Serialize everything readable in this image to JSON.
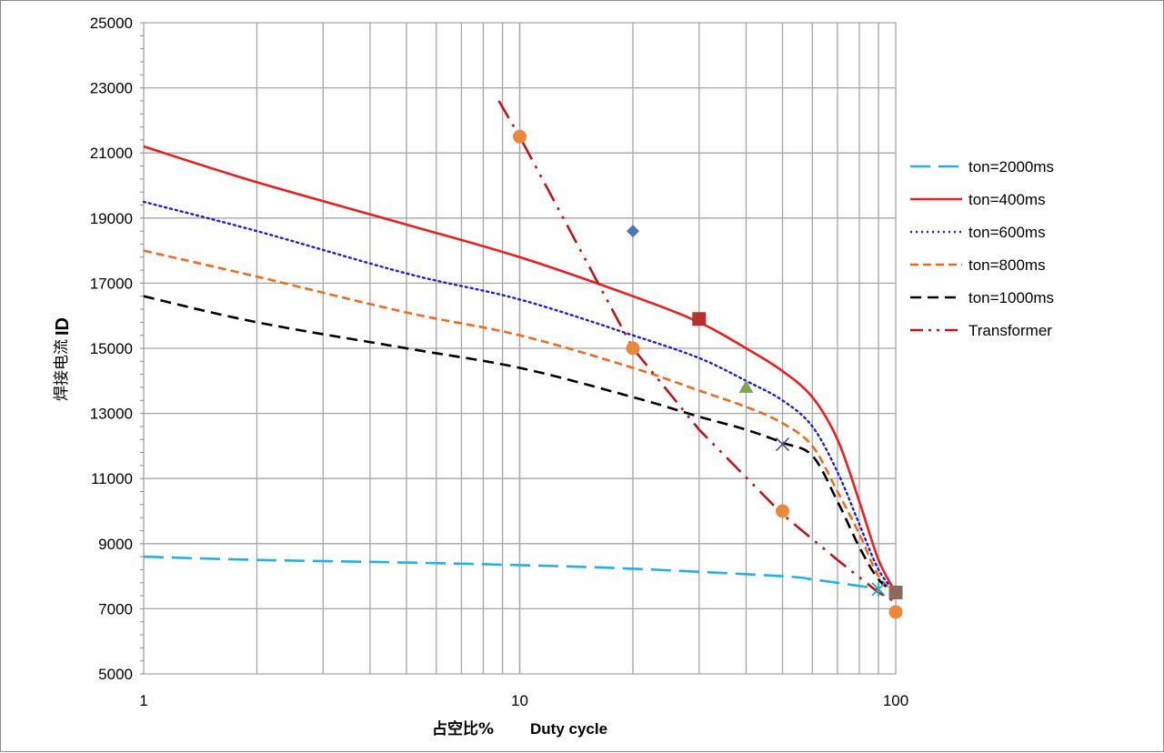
{
  "chart_data": {
    "type": "line",
    "xscale": "log",
    "xlim": [
      1,
      100
    ],
    "ylim": [
      5000,
      25000
    ],
    "grid": true,
    "legend_position": "right",
    "xlabel_cn": "占空比%",
    "xlabel_en": "Duty cycle",
    "ylabel_main": "焊接电流",
    "ylabel_sub": "ID",
    "x_ticks": [
      1,
      10,
      100
    ],
    "y_ticks": [
      5000,
      7000,
      9000,
      11000,
      13000,
      15000,
      17000,
      19000,
      21000,
      23000,
      25000
    ],
    "series": [
      {
        "name": "ton=2000ms",
        "color": "#1fb2e6",
        "dash": "long-dash",
        "x": [
          1,
          2,
          5,
          10,
          20,
          50,
          60,
          70,
          80,
          90
        ],
        "y": [
          8600,
          8500,
          8420,
          8340,
          8230,
          8000,
          7900,
          7800,
          7700,
          7620
        ]
      },
      {
        "name": "ton=400ms",
        "color": "#ee1c1c",
        "dash": "solid",
        "x": [
          1,
          2,
          5,
          10,
          20,
          30,
          40,
          50,
          60,
          70,
          80,
          90,
          100
        ],
        "y": [
          21200,
          20100,
          18800,
          17800,
          16600,
          15800,
          15000,
          14300,
          13500,
          12200,
          10300,
          8500,
          7500
        ]
      },
      {
        "name": "ton=600ms",
        "color": "#1f1fdc",
        "dash": "dotted",
        "x": [
          1,
          2,
          5,
          10,
          20,
          30,
          40,
          50,
          60,
          70,
          80,
          90,
          100
        ],
        "y": [
          19500,
          18600,
          17300,
          16500,
          15400,
          14700,
          14000,
          13400,
          12600,
          11200,
          9600,
          8200,
          7500
        ]
      },
      {
        "name": "ton=800ms",
        "color": "#f26b1d",
        "dash": "short-dash",
        "x": [
          1,
          2,
          5,
          10,
          20,
          30,
          40,
          50,
          60,
          70,
          80,
          90,
          100
        ],
        "y": [
          18000,
          17200,
          16100,
          15400,
          14400,
          13700,
          13200,
          12700,
          12000,
          10600,
          9300,
          8000,
          7500
        ]
      },
      {
        "name": "ton=1000ms",
        "color": "#000000",
        "dash": "dash",
        "x": [
          1,
          2,
          5,
          10,
          20,
          30,
          40,
          50,
          60,
          70,
          80,
          90,
          100
        ],
        "y": [
          16600,
          15800,
          15000,
          14400,
          13500,
          12900,
          12500,
          12100,
          11700,
          10300,
          8900,
          7900,
          7500
        ]
      },
      {
        "name": "Transformer",
        "color": "#c0141c",
        "dash": "dash-dot-dot",
        "x": [
          8.8,
          10,
          20,
          30,
          50,
          70,
          90,
          100
        ],
        "y": [
          22600,
          21500,
          15000,
          12500,
          9900,
          8500,
          7500,
          7200
        ]
      }
    ],
    "markers": [
      {
        "shape": "diamond",
        "color": "#4a78b5",
        "x": 20,
        "y": 18600
      },
      {
        "shape": "square",
        "color": "#b8312f",
        "x": 30,
        "y": 15900
      },
      {
        "shape": "triangle",
        "color": "#7fa650",
        "x": 40,
        "y": 13800
      },
      {
        "shape": "x",
        "color": "#5c4b8a",
        "x": 50,
        "y": 12050
      },
      {
        "shape": "star",
        "color": "#2aa8c8",
        "x": 90,
        "y": 7600
      },
      {
        "shape": "circle",
        "color": "#e8893c",
        "x": 10,
        "y": 21500
      },
      {
        "shape": "circle",
        "color": "#e8893c",
        "x": 20,
        "y": 15000
      },
      {
        "shape": "circle",
        "color": "#e8893c",
        "x": 50,
        "y": 10000
      },
      {
        "shape": "circle",
        "color": "#e8893c",
        "x": 100,
        "y": 6900
      },
      {
        "shape": "square",
        "color": "#8a6a5a",
        "x": 100,
        "y": 7500
      }
    ]
  }
}
